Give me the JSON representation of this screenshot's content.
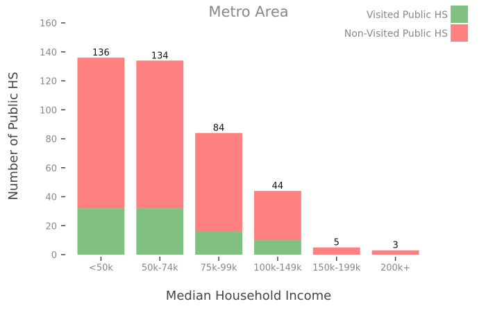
{
  "chart_data": {
    "type": "bar",
    "stacked": true,
    "title": "Metro Area",
    "xlabel": "Median Household Income",
    "ylabel": "Number of Public HS",
    "categories": [
      "<50k",
      "50k-74k",
      "75k-99k",
      "100k-149k",
      "150k-199k",
      "200k+"
    ],
    "series": [
      {
        "name": "Visited Public HS",
        "color": "#80c080",
        "values": [
          32,
          32,
          16,
          10,
          0,
          0
        ]
      },
      {
        "name": "Non-Visited Public HS",
        "color": "#ff8080",
        "values": [
          104,
          102,
          68,
          34,
          5,
          3
        ]
      }
    ],
    "totals": [
      "136",
      "134",
      "84",
      "44",
      "5",
      "3"
    ],
    "ylim": [
      0,
      160
    ],
    "yticks": [
      "0",
      "20",
      "40",
      "60",
      "80",
      "100",
      "120",
      "140",
      "160"
    ],
    "grid": false,
    "legend_position": "top-right"
  }
}
